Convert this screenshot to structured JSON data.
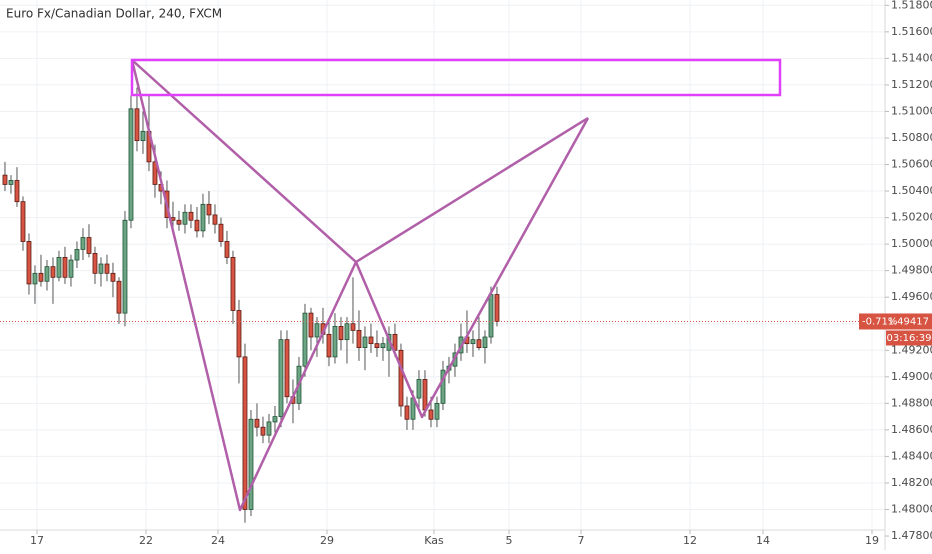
{
  "chart_data": {
    "type": "candlestick",
    "title": "Euro Fx/Canadian Dollar, 240, FXCM",
    "ohlc": [
      [
        1.5052,
        1.5062,
        1.504,
        1.5045
      ],
      [
        1.5045,
        1.5052,
        1.5038,
        1.5048
      ],
      [
        1.5048,
        1.5058,
        1.5028,
        1.5032
      ],
      [
        1.5032,
        1.5036,
        1.4995,
        1.5002
      ],
      [
        1.5002,
        1.5008,
        1.4962,
        1.497
      ],
      [
        1.497,
        1.4984,
        1.4955,
        1.4978
      ],
      [
        1.4978,
        1.4992,
        1.4968,
        1.4972
      ],
      [
        1.4972,
        1.4988,
        1.4965,
        1.4983
      ],
      [
        1.4983,
        1.499,
        1.4955,
        1.4975
      ],
      [
        1.4975,
        1.4995,
        1.4972,
        1.499
      ],
      [
        1.499,
        1.4998,
        1.497,
        1.4975
      ],
      [
        1.4975,
        1.4992,
        1.4968,
        1.4988
      ],
      [
        1.4988,
        1.5002,
        1.4982,
        1.4996
      ],
      [
        1.4996,
        1.5012,
        1.4988,
        1.5005
      ],
      [
        1.5005,
        1.5015,
        1.499,
        1.4993
      ],
      [
        1.4993,
        1.4998,
        1.497,
        1.4978
      ],
      [
        1.4978,
        1.499,
        1.4968,
        1.4985
      ],
      [
        1.4985,
        1.4992,
        1.4972,
        1.4978
      ],
      [
        1.4978,
        1.4986,
        1.496,
        1.4972
      ],
      [
        1.4972,
        1.4975,
        1.494,
        1.4948
      ],
      [
        1.4948,
        1.5025,
        1.4938,
        1.5018
      ],
      [
        1.5018,
        1.5112,
        1.5012,
        1.5102
      ],
      [
        1.5102,
        1.5118,
        1.507,
        1.5078
      ],
      [
        1.5078,
        1.51,
        1.5068,
        1.5085
      ],
      [
        1.5085,
        1.5112,
        1.5055,
        1.5062
      ],
      [
        1.5062,
        1.5075,
        1.5035,
        1.5045
      ],
      [
        1.5045,
        1.5055,
        1.503,
        1.504
      ],
      [
        1.504,
        1.5048,
        1.5012,
        1.502
      ],
      [
        1.502,
        1.5032,
        1.5008,
        1.5018
      ],
      [
        1.5018,
        1.5025,
        1.501,
        1.5015
      ],
      [
        1.5015,
        1.503,
        1.5008,
        1.5024
      ],
      [
        1.5024,
        1.503,
        1.5012,
        1.5018
      ],
      [
        1.5018,
        1.5028,
        1.5005,
        1.501
      ],
      [
        1.501,
        1.5038,
        1.5005,
        1.503
      ],
      [
        1.503,
        1.504,
        1.5015,
        1.5022
      ],
      [
        1.5022,
        1.503,
        1.5008,
        1.5015
      ],
      [
        1.5015,
        1.502,
        1.4998,
        1.5002
      ],
      [
        1.5002,
        1.501,
        1.4985,
        1.499
      ],
      [
        1.499,
        1.4995,
        1.494,
        1.495
      ],
      [
        1.495,
        1.4958,
        1.4895,
        1.4915
      ],
      [
        1.4915,
        1.4925,
        1.479,
        1.48
      ],
      [
        1.48,
        1.4875,
        1.4795,
        1.4868
      ],
      [
        1.4868,
        1.488,
        1.4855,
        1.4862
      ],
      [
        1.4862,
        1.487,
        1.485,
        1.4856
      ],
      [
        1.4856,
        1.4872,
        1.485,
        1.4866
      ],
      [
        1.4866,
        1.4878,
        1.4858,
        1.487
      ],
      [
        1.487,
        1.4935,
        1.4862,
        1.4928
      ],
      [
        1.4928,
        1.4935,
        1.488,
        1.4885
      ],
      [
        1.4885,
        1.4898,
        1.4865,
        1.488
      ],
      [
        1.488,
        1.4915,
        1.4875,
        1.4908
      ],
      [
        1.4908,
        1.4955,
        1.49,
        1.4948
      ],
      [
        1.4948,
        1.4952,
        1.492,
        1.493
      ],
      [
        1.493,
        1.4945,
        1.4915,
        1.494
      ],
      [
        1.494,
        1.4952,
        1.4925,
        1.4932
      ],
      [
        1.4932,
        1.4942,
        1.4908,
        1.4915
      ],
      [
        1.4915,
        1.4948,
        1.491,
        1.4938
      ],
      [
        1.4938,
        1.4945,
        1.492,
        1.4928
      ],
      [
        1.4928,
        1.4945,
        1.491,
        1.494
      ],
      [
        1.494,
        1.4975,
        1.4925,
        1.4935
      ],
      [
        1.4935,
        1.495,
        1.4912,
        1.4922
      ],
      [
        1.4922,
        1.4938,
        1.4905,
        1.493
      ],
      [
        1.493,
        1.494,
        1.4918,
        1.4925
      ],
      [
        1.4925,
        1.4935,
        1.4915,
        1.4922
      ],
      [
        1.4922,
        1.493,
        1.4912,
        1.4925
      ],
      [
        1.492,
        1.4938,
        1.49,
        1.4932
      ],
      [
        1.4932,
        1.494,
        1.4915,
        1.492
      ],
      [
        1.492,
        1.4925,
        1.487,
        1.4878
      ],
      [
        1.4878,
        1.4885,
        1.486,
        1.4868
      ],
      [
        1.4868,
        1.489,
        1.486,
        1.4884
      ],
      [
        1.4884,
        1.4905,
        1.4875,
        1.4898
      ],
      [
        1.4898,
        1.4905,
        1.487,
        1.4875
      ],
      [
        1.4875,
        1.4885,
        1.4862,
        1.4868
      ],
      [
        1.4868,
        1.4885,
        1.4862,
        1.488
      ],
      [
        1.488,
        1.4912,
        1.4875,
        1.4905
      ],
      [
        1.4905,
        1.4915,
        1.4895,
        1.4908
      ],
      [
        1.4908,
        1.4925,
        1.49,
        1.4918
      ],
      [
        1.4918,
        1.494,
        1.4912,
        1.493
      ],
      [
        1.493,
        1.495,
        1.4918,
        1.4925
      ],
      [
        1.4925,
        1.4935,
        1.4915,
        1.4928
      ],
      [
        1.4928,
        1.4945,
        1.492,
        1.4922
      ],
      [
        1.4922,
        1.4935,
        1.491,
        1.493
      ],
      [
        1.493,
        1.4968,
        1.4925,
        1.4962
      ],
      [
        1.4962,
        1.4968,
        1.4938,
        1.49417
      ]
    ],
    "up_color": "#6ba583",
    "down_color": "#d75442",
    "xlim": [
      -0.83,
      146.67
    ],
    "xticks": [
      {
        "value": 5.33,
        "label": "17"
      },
      {
        "value": 23.5,
        "label": "22"
      },
      {
        "value": 35.5,
        "label": "24"
      },
      {
        "value": 53.67,
        "label": "29"
      },
      {
        "value": 71.5,
        "label": "Kas"
      },
      {
        "value": 84,
        "label": "5"
      },
      {
        "value": 96,
        "label": "7"
      },
      {
        "value": 114.17,
        "label": "12"
      },
      {
        "value": 126.33,
        "label": "14"
      },
      {
        "value": 144.5,
        "label": "19"
      }
    ],
    "ylim": [
      1.4777,
      1.5184
    ],
    "yticks": [
      {
        "value": 1.478,
        "label": "1.47800"
      },
      {
        "value": 1.48,
        "label": "1.48000"
      },
      {
        "value": 1.482,
        "label": "1.48200"
      },
      {
        "value": 1.484,
        "label": "1.48400"
      },
      {
        "value": 1.486,
        "label": "1.48600"
      },
      {
        "value": 1.488,
        "label": "1.48800"
      },
      {
        "value": 1.49,
        "label": "1.49000"
      },
      {
        "value": 1.492,
        "label": "1.49200"
      },
      {
        "value": 1.494,
        "label": "1.49400"
      },
      {
        "value": 1.496,
        "label": "1.49600"
      },
      {
        "value": 1.498,
        "label": "1.49800"
      },
      {
        "value": 1.5,
        "label": "1.50000"
      },
      {
        "value": 1.502,
        "label": "1.50200"
      },
      {
        "value": 1.504,
        "label": "1.50400"
      },
      {
        "value": 1.506,
        "label": "1.50600"
      },
      {
        "value": 1.508,
        "label": "1.50800"
      },
      {
        "value": 1.51,
        "label": "1.51000"
      },
      {
        "value": 1.512,
        "label": "1.51200"
      },
      {
        "value": 1.514,
        "label": "1.51400"
      },
      {
        "value": 1.516,
        "label": "1.51600"
      },
      {
        "value": 1.518,
        "label": "1.51800"
      }
    ],
    "grid": true,
    "last_price": {
      "value": 1.49417,
      "label": "1.49417"
    },
    "change_label": "-0.71%",
    "countdown": "03:16:39"
  }
}
